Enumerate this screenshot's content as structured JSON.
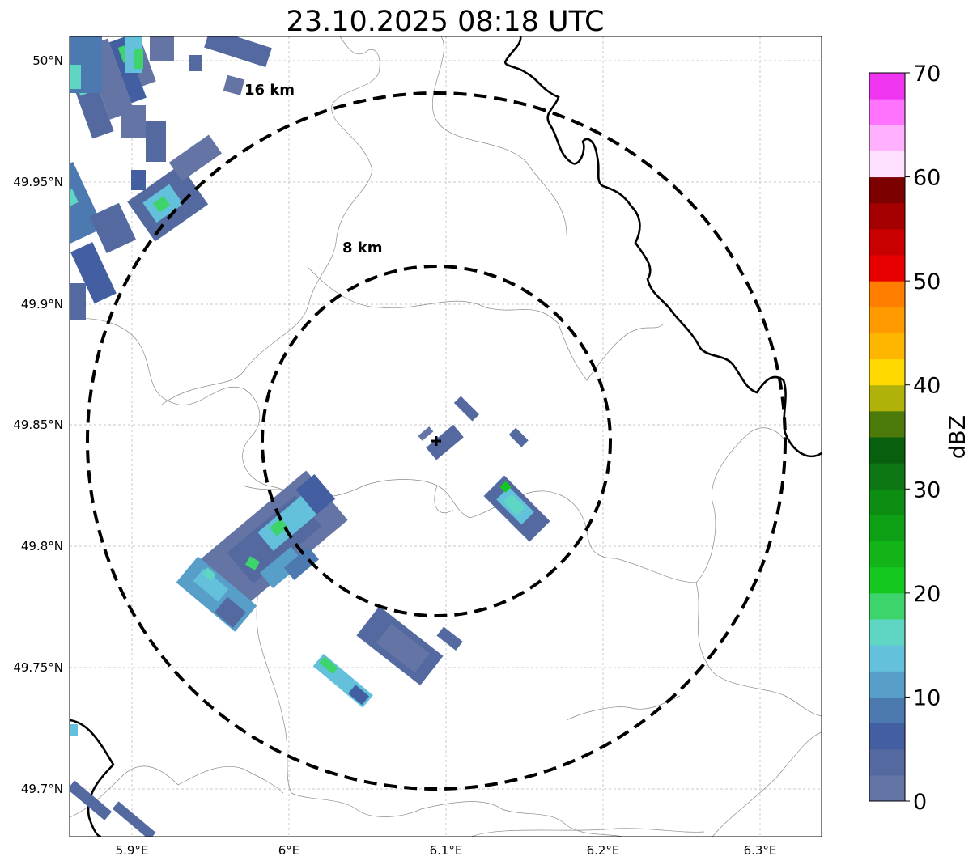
{
  "title": "23.10.2025 08:18 UTC",
  "map": {
    "lon_ticks": [
      "5.9°E",
      "6°E",
      "6.1°E",
      "6.2°E",
      "6.3°E"
    ],
    "lat_ticks": [
      "50°N",
      "49.95°N",
      "49.9°N",
      "49.85°N",
      "49.8°N",
      "49.75°N",
      "49.7°N"
    ],
    "radar_center": {
      "lon": 6.095,
      "lat": 49.843
    },
    "rings": [
      {
        "label": "8 km",
        "radius_km": 8
      },
      {
        "label": "16 km",
        "radius_km": 16
      }
    ]
  },
  "colorbar": {
    "label": "dBZ",
    "tick_labels": [
      "0",
      "10",
      "20",
      "30",
      "40",
      "50",
      "60",
      "70"
    ],
    "colors": [
      "#6474a4",
      "#54699f",
      "#435fa2",
      "#4d79b1",
      "#579fc8",
      "#63c1dc",
      "#5fd6c4",
      "#3ed46c",
      "#15c820",
      "#12b417",
      "#0d9f14",
      "#0d8d12",
      "#0b7612",
      "#085f0e",
      "#4b7a0b",
      "#b0b20a",
      "#ffd900",
      "#ffb600",
      "#ff9a00",
      "#ff7e00",
      "#e80000",
      "#c90000",
      "#a50000",
      "#7d0000",
      "#ffe0ff",
      "#ffb0ff",
      "#ff73ff",
      "#f035f0"
    ]
  }
}
